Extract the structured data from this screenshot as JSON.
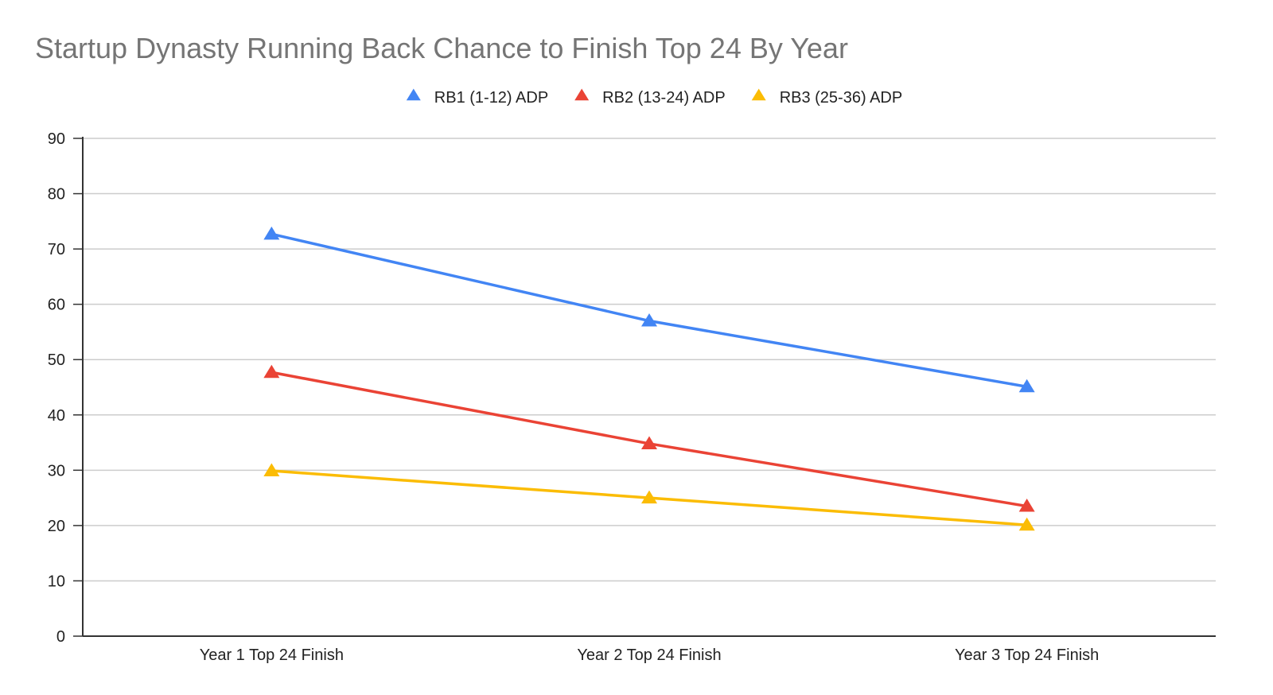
{
  "chart_data": {
    "type": "line",
    "title": "Startup Dynasty Running Back Chance to Finish Top 24 By Year",
    "categories": [
      "Year 1 Top 24 Finish",
      "Year 2 Top 24 Finish",
      "Year 3 Top 24 Finish"
    ],
    "series": [
      {
        "name": "RB1 (1-12) ADP",
        "values": [
          72.7,
          57,
          45.1
        ],
        "color": "#4285f4",
        "marker": "triangle"
      },
      {
        "name": "RB2 (13-24) ADP",
        "values": [
          47.7,
          34.8,
          23.5
        ],
        "color": "#ea4335",
        "marker": "triangle"
      },
      {
        "name": "RB3 (25-36) ADP",
        "values": [
          29.9,
          25,
          20.1
        ],
        "color": "#fbbc04",
        "marker": "triangle"
      }
    ],
    "ylim": [
      0,
      90
    ],
    "yticks": [
      "0",
      "10",
      "20",
      "30",
      "40",
      "50",
      "60",
      "70",
      "80",
      "90"
    ],
    "grid": true,
    "legend": "top-center",
    "xlabel": "",
    "ylabel": ""
  }
}
